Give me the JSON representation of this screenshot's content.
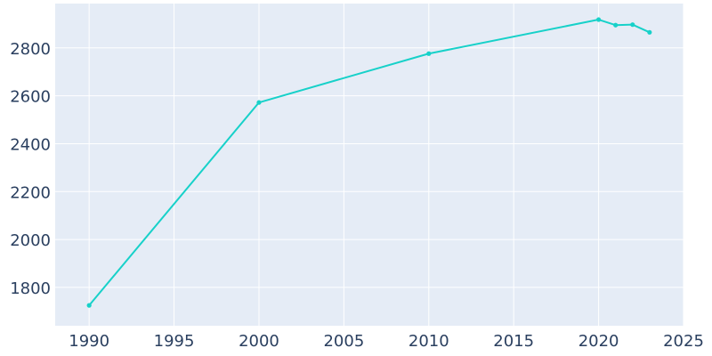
{
  "chart_data": {
    "type": "line",
    "title": "",
    "xlabel": "",
    "ylabel": "",
    "xlim": [
      1988,
      2025
    ],
    "ylim": [
      1640,
      2985
    ],
    "x_ticks": [
      1990,
      1995,
      2000,
      2005,
      2010,
      2015,
      2020,
      2025
    ],
    "y_ticks": [
      1800,
      2000,
      2200,
      2400,
      2600,
      2800
    ],
    "grid": true,
    "legend": "none",
    "series": [
      {
        "color": "#17d1c9",
        "x": [
          1990,
          2000,
          2010,
          2020,
          2021,
          2022,
          2023
        ],
        "y": [
          1725,
          2572,
          2776,
          2918,
          2895,
          2897,
          2865
        ]
      }
    ]
  }
}
